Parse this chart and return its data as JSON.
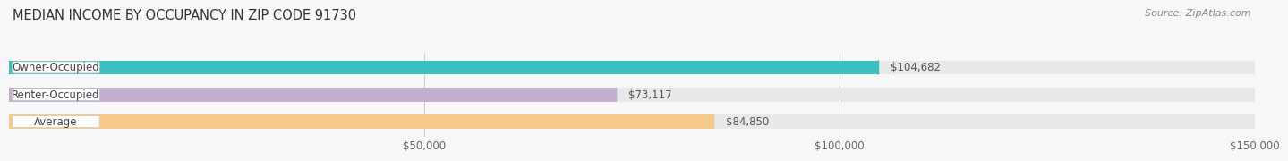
{
  "title": "MEDIAN INCOME BY OCCUPANCY IN ZIP CODE 91730",
  "source": "Source: ZipAtlas.com",
  "categories": [
    "Owner-Occupied",
    "Renter-Occupied",
    "Average"
  ],
  "values": [
    104682,
    73117,
    84850
  ],
  "bar_colors": [
    "#3abfbf",
    "#c4aed0",
    "#f5c98a"
  ],
  "bar_bg_color": "#e8e8ea",
  "label_texts": [
    "$104,682",
    "$73,117",
    "$84,850"
  ],
  "xlim_max": 150000,
  "xtick_values": [
    50000,
    100000,
    150000
  ],
  "xtick_labels": [
    "$50,000",
    "$100,000",
    "$150,000"
  ],
  "title_fontsize": 10.5,
  "source_fontsize": 8,
  "bar_label_fontsize": 8.5,
  "cat_label_fontsize": 8.5,
  "background_color": "#f7f7f7"
}
